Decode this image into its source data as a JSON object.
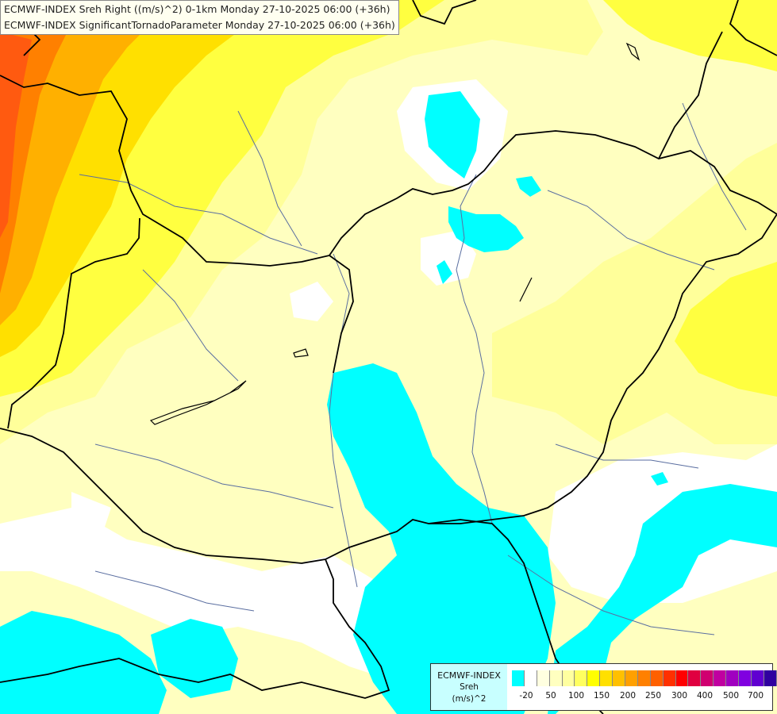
{
  "titles": {
    "line1": "ECMWF-INDEX Sreh Right ((m/s)^2) 0-1km Monday 27-10-2025 06:00 (+36h)",
    "line2": "ECMWF-INDEX SignificantTornadoParameter Monday 27-10-2025 06:00 (+36h)"
  },
  "legend": {
    "model": "ECMWF-INDEX",
    "parameter": "Sreh",
    "unit": "(m/s)^2",
    "colors": [
      "#00ffff",
      "#ffffff",
      "#ffffe0",
      "#ffffc0",
      "#ffffa0",
      "#ffff60",
      "#ffff00",
      "#ffe000",
      "#ffc000",
      "#ffa000",
      "#ff8000",
      "#ff6000",
      "#ff3000",
      "#ff0000",
      "#e00040",
      "#d00070",
      "#c000a0",
      "#a000c0",
      "#8000e0",
      "#6000d0",
      "#3000a0",
      "#000080"
    ],
    "ticks": [
      "-20",
      "50",
      "100",
      "150",
      "200",
      "250",
      "300",
      "400",
      "500",
      "700"
    ]
  },
  "colors": {
    "cyan": "#00ffff",
    "white": "#ffffff",
    "pale_yellow": "#ffffc0",
    "light_yellow": "#ffff9a",
    "yellow": "#ffff40",
    "gold": "#ffe000",
    "orange": "#ffb000",
    "dark_orange": "#ff8000",
    "red_orange": "#ff5a10",
    "border": "#000000",
    "river": "#5a6ea0"
  }
}
